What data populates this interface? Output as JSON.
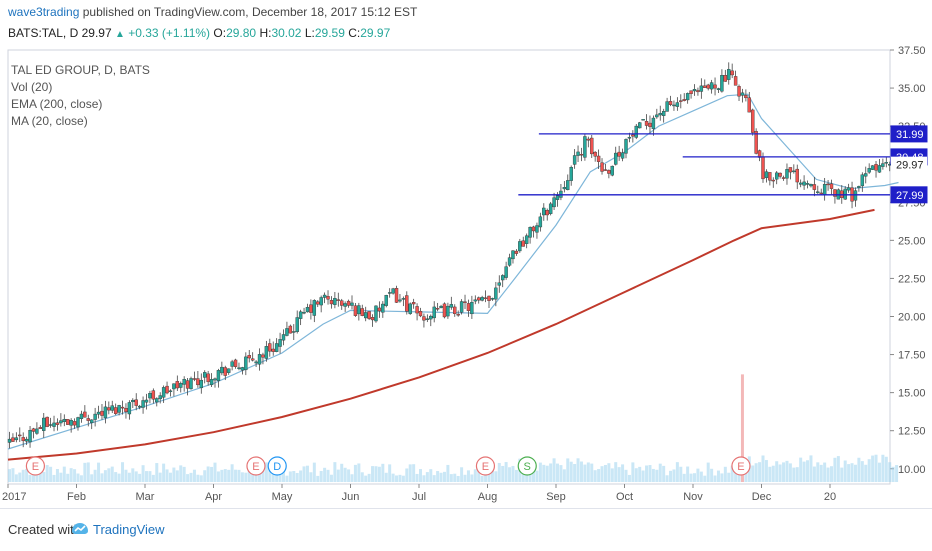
{
  "header": {
    "author": "wave3trading",
    "published_text": "published on TradingView.com, December 18, 2017 15:12 EST"
  },
  "quote": {
    "symbol": "BATS:TAL, D",
    "last": "29.97",
    "change": "+0.33 (+1.11%)",
    "o_label": "O:",
    "o": "29.80",
    "h_label": "H:",
    "h": "30.02",
    "l_label": "L:",
    "l": "29.59",
    "c_label": "C:",
    "c": "29.97"
  },
  "legend": {
    "title": "TAL ED GROUP, D, BATS",
    "vol": "Vol (20)",
    "ema": "EMA (200, close)",
    "ma": "MA (20, close)"
  },
  "footer": {
    "created": "Created with",
    "brand": "TradingView"
  },
  "colors": {
    "up": "#26a69a",
    "down": "#ef5350",
    "ema": "#c0392b",
    "ma": "#7eb6d9",
    "level": "#1f1fc8",
    "volume": "#9fd3ee",
    "text_link": "#1e73be"
  },
  "chart_data": {
    "type": "candlestick",
    "title": "TAL ED GROUP, D, BATS",
    "ylim": [
      9,
      37.5
    ],
    "y_ticks": [
      "37.50",
      "35.00",
      "32.50",
      "30.00",
      "27.50",
      "25.00",
      "22.50",
      "20.00",
      "17.50",
      "15.00",
      "12.50",
      "10.00"
    ],
    "x_ticks": [
      "2017",
      "Feb",
      "Mar",
      "Apr",
      "May",
      "Jun",
      "Jul",
      "Aug",
      "Sep",
      "Oct",
      "Nov",
      "Dec",
      "20"
    ],
    "price_labels": [
      {
        "value": 31.99,
        "text": "31.99",
        "style": "level"
      },
      {
        "value": 30.48,
        "text": "30.48",
        "style": "level"
      },
      {
        "value": 29.97,
        "text": "29.97",
        "style": "last"
      },
      {
        "value": 27.99,
        "text": "27.99",
        "style": "level"
      }
    ],
    "horizontal_levels": [
      {
        "value": 31.99,
        "from_month": "Aug",
        "from_offset": 0.75
      },
      {
        "value": 30.48,
        "from_month": "Oct",
        "from_offset": 0.85
      },
      {
        "value": 27.99,
        "from_month": "Aug",
        "from_offset": 0.45
      }
    ],
    "price_path": [
      [
        0,
        11.6
      ],
      [
        0.5,
        12.9
      ],
      [
        1.0,
        13.3
      ],
      [
        1.5,
        13.9
      ],
      [
        2.0,
        14.6
      ],
      [
        2.5,
        15.5
      ],
      [
        3.0,
        16.3
      ],
      [
        3.5,
        17.0
      ],
      [
        4.0,
        18.5
      ],
      [
        4.3,
        20.2
      ],
      [
        4.6,
        21.2
      ],
      [
        5.0,
        20.6
      ],
      [
        5.3,
        20.0
      ],
      [
        5.6,
        21.5
      ],
      [
        6.0,
        20.0
      ],
      [
        6.5,
        20.5
      ],
      [
        7.0,
        21.0
      ],
      [
        7.3,
        24.0
      ],
      [
        7.6,
        25.5
      ],
      [
        8.0,
        28.0
      ],
      [
        8.4,
        31.5
      ],
      [
        8.7,
        29.5
      ],
      [
        9.0,
        31.5
      ],
      [
        9.5,
        33.5
      ],
      [
        10.0,
        34.5
      ],
      [
        10.5,
        35.8
      ],
      [
        10.75,
        34.3
      ],
      [
        10.85,
        32.0
      ],
      [
        11.0,
        29.0
      ],
      [
        11.3,
        29.5
      ],
      [
        11.6,
        29.0
      ],
      [
        12.0,
        28.2
      ],
      [
        12.3,
        28.0
      ],
      [
        12.6,
        29.8
      ],
      [
        13.0,
        29.97
      ]
    ],
    "ema200_path": [
      [
        0,
        10.6
      ],
      [
        1,
        11.0
      ],
      [
        2,
        11.6
      ],
      [
        3,
        12.4
      ],
      [
        4,
        13.4
      ],
      [
        5,
        14.6
      ],
      [
        6,
        16.0
      ],
      [
        7,
        17.6
      ],
      [
        8,
        19.5
      ],
      [
        9,
        21.6
      ],
      [
        10,
        23.7
      ],
      [
        10.6,
        25.0
      ],
      [
        11,
        25.8
      ],
      [
        12,
        26.4
      ],
      [
        12.65,
        27.0
      ]
    ],
    "ma20_path": [
      [
        0,
        11.3
      ],
      [
        1,
        12.7
      ],
      [
        2,
        14.1
      ],
      [
        3,
        15.6
      ],
      [
        4,
        17.6
      ],
      [
        4.6,
        19.5
      ],
      [
        5.0,
        20.4
      ],
      [
        6.0,
        20.3
      ],
      [
        7.0,
        20.2
      ],
      [
        7.4,
        22.5
      ],
      [
        8.0,
        26.0
      ],
      [
        8.5,
        29.5
      ],
      [
        9.0,
        30.8
      ],
      [
        9.5,
        32.5
      ],
      [
        10.0,
        33.5
      ],
      [
        10.5,
        34.5
      ],
      [
        10.8,
        34.6
      ],
      [
        11.0,
        33.0
      ],
      [
        11.4,
        31.0
      ],
      [
        11.8,
        29.0
      ],
      [
        12.3,
        28.4
      ],
      [
        12.8,
        28.6
      ],
      [
        13.0,
        28.8
      ]
    ],
    "volume_spike": {
      "x": 10.7,
      "value": 16.2
    },
    "events": [
      {
        "x": 0.4,
        "label": "E"
      },
      {
        "x": 3.62,
        "label": "E"
      },
      {
        "x": 3.93,
        "label": "D"
      },
      {
        "x": 6.97,
        "label": "E"
      },
      {
        "x": 7.58,
        "label": "S"
      },
      {
        "x": 10.7,
        "label": "E"
      }
    ]
  }
}
